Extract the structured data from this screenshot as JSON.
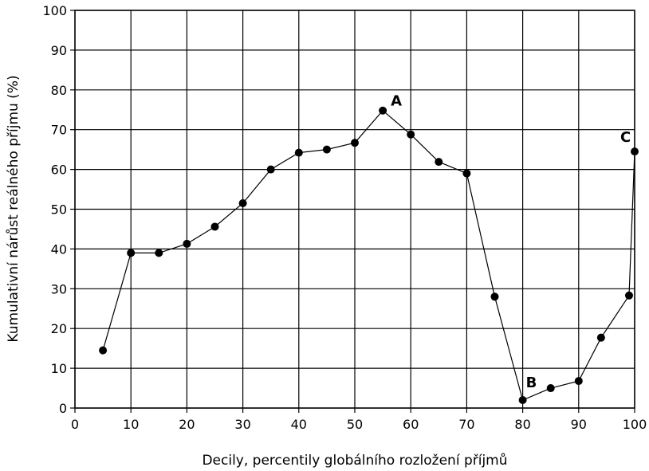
{
  "chart_data": {
    "type": "line",
    "title": "",
    "xlabel": "Decily, percentily globálního rozložení příjmů",
    "ylabel": "Kumulativní nárůst reálného příjmu (%)",
    "xlim": [
      0,
      100
    ],
    "ylim": [
      0,
      100
    ],
    "xticks": [
      0,
      10,
      20,
      30,
      40,
      50,
      60,
      70,
      80,
      90,
      100
    ],
    "yticks": [
      0,
      10,
      20,
      30,
      40,
      50,
      60,
      70,
      80,
      90,
      100
    ],
    "grid": true,
    "series": [
      {
        "x": [
          5,
          10,
          15,
          20,
          25,
          30,
          35,
          40,
          45,
          50,
          55,
          60,
          65,
          70,
          75,
          80,
          85,
          90,
          94,
          99,
          100
        ],
        "y": [
          14.5,
          39,
          39,
          41.3,
          45.6,
          51.5,
          60,
          64.2,
          65,
          66.7,
          74.8,
          68.8,
          61.9,
          59,
          28,
          2,
          5,
          6.8,
          17.7,
          28.3,
          64.5
        ]
      }
    ],
    "annotations": [
      {
        "text": "A",
        "x": 55,
        "y": 74.8
      },
      {
        "text": "B",
        "x": 80,
        "y": 2
      },
      {
        "text": "C",
        "x": 100,
        "y": 64.5
      }
    ]
  }
}
